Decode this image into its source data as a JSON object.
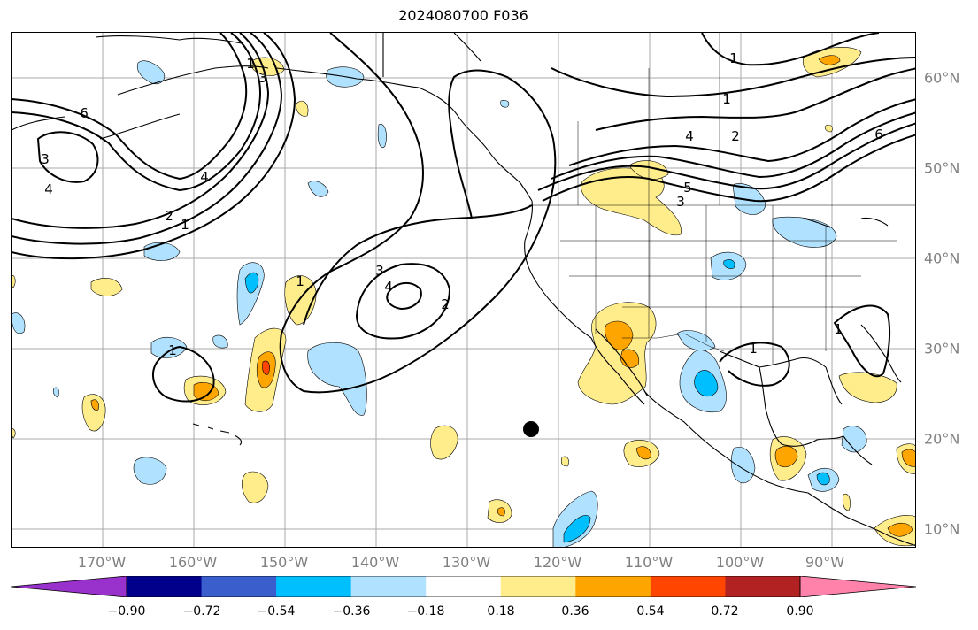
{
  "title": "2024080700 F036",
  "lon_labels": [
    "170°W",
    "160°W",
    "150°W",
    "140°W",
    "130°W",
    "120°W",
    "110°W",
    "100°W",
    "90°W"
  ],
  "lat_labels": [
    "60°N",
    "50°N",
    "40°N",
    "30°N",
    "20°N",
    "10°N"
  ],
  "contour_labels": [
    "1",
    "1",
    "1",
    "1",
    "1",
    "1",
    "1",
    "1",
    "2",
    "2",
    "2",
    "3",
    "3",
    "3",
    "3",
    "4",
    "4",
    "4",
    "4",
    "5",
    "6",
    "6"
  ],
  "colorbar": {
    "colors": [
      "#9932cc",
      "#00008b",
      "#3a5fcd",
      "#00bfff",
      "#b0e2ff",
      "#ffffff",
      "#ffec8b",
      "#ffa500",
      "#ff4500",
      "#b22222",
      "#ff82ab"
    ],
    "labels": [
      "−0.90",
      "−0.72",
      "−0.54",
      "−0.36",
      "−0.18",
      "0.18",
      "0.36",
      "0.54",
      "0.72",
      "0.90"
    ]
  },
  "marker": "black-dot"
}
